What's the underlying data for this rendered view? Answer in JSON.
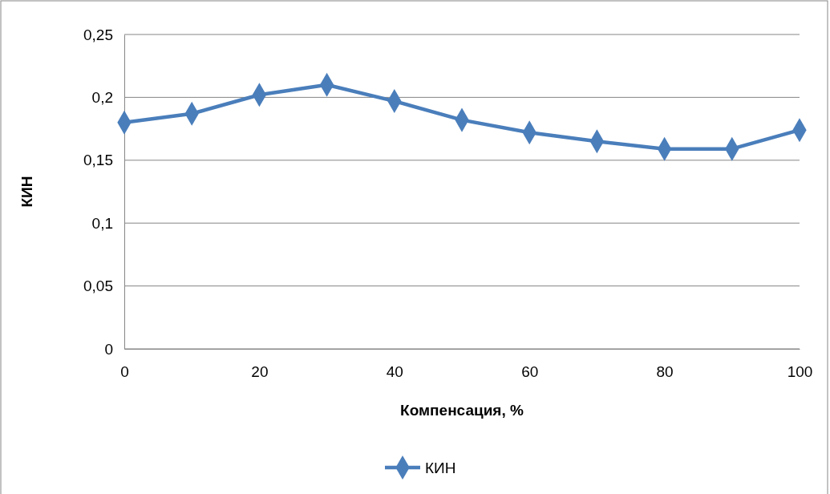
{
  "chart_data": {
    "type": "line",
    "xlabel": "Компенсация, %",
    "ylabel": "КИН",
    "x": [
      0,
      10,
      20,
      30,
      40,
      50,
      60,
      70,
      80,
      90,
      100
    ],
    "series": [
      {
        "name": "КИН",
        "color": "#4a7ebb",
        "values": [
          0.18,
          0.187,
          0.202,
          0.21,
          0.197,
          0.182,
          0.172,
          0.165,
          0.159,
          0.159,
          0.174
        ]
      }
    ],
    "xlim": [
      0,
      100
    ],
    "xticks": [
      0,
      20,
      40,
      60,
      80,
      100
    ],
    "ylim": [
      0,
      0.25
    ],
    "yticks": [
      {
        "value": 0,
        "label": "0"
      },
      {
        "value": 0.05,
        "label": "0,05"
      },
      {
        "value": 0.1,
        "label": "0,1"
      },
      {
        "value": 0.15,
        "label": "0,15"
      },
      {
        "value": 0.2,
        "label": "0,2"
      },
      {
        "value": 0.25,
        "label": "0,25"
      }
    ],
    "grid": "y",
    "legend": "bottom",
    "marker": "diamond",
    "line_style": "solid"
  }
}
